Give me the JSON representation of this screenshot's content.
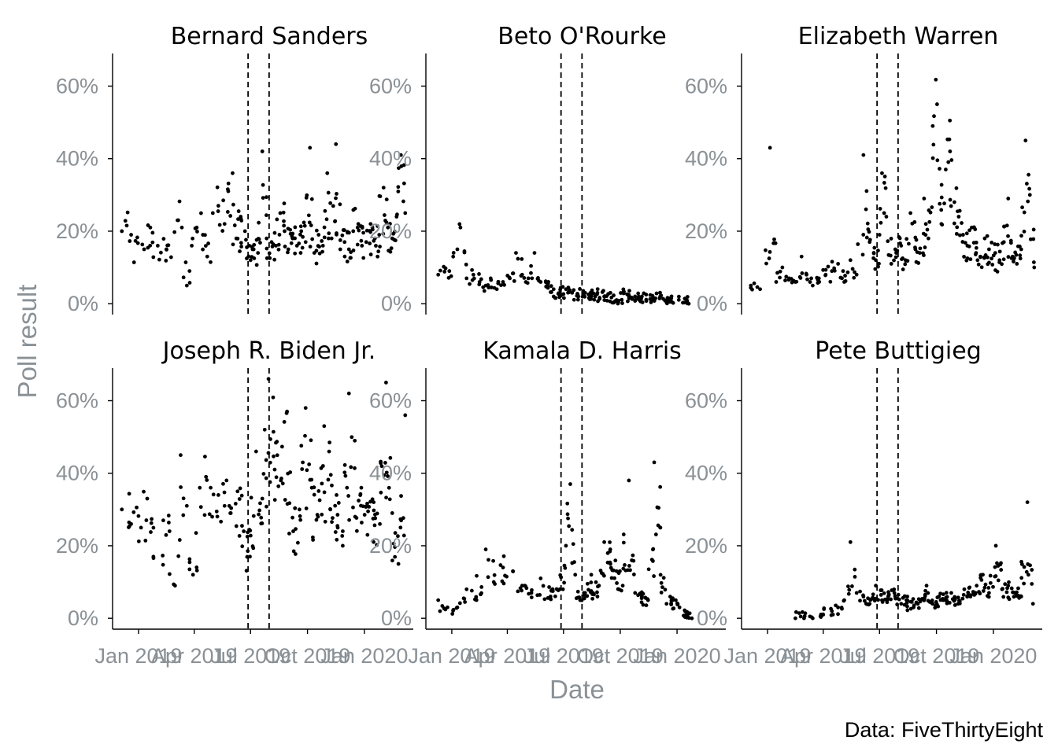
{
  "chart_data": {
    "type": "scatter",
    "facets": [
      {
        "name": "Bernard Sanders",
        "points": [
          [
            "2018-12-05",
            20
          ],
          [
            "2018-12-20",
            19
          ],
          [
            "2019-01-10",
            15
          ],
          [
            "2019-01-20",
            21
          ],
          [
            "2019-02-01",
            16
          ],
          [
            "2019-02-15",
            15
          ],
          [
            "2019-03-05",
            23
          ],
          [
            "2019-03-12",
            21
          ],
          [
            "2019-03-20",
            5
          ],
          [
            "2019-03-28",
            16
          ],
          [
            "2019-04-05",
            21
          ],
          [
            "2019-04-15",
            19
          ],
          [
            "2019-04-22",
            13
          ],
          [
            "2019-05-01",
            25
          ],
          [
            "2019-05-10",
            27
          ],
          [
            "2019-05-20",
            22
          ],
          [
            "2019-05-26",
            31
          ],
          [
            "2019-06-02",
            36
          ],
          [
            "2019-06-08",
            18
          ],
          [
            "2019-06-15",
            24
          ],
          [
            "2019-06-22",
            20
          ],
          [
            "2019-06-29",
            16
          ],
          [
            "2019-07-06",
            15
          ],
          [
            "2019-07-13",
            14
          ],
          [
            "2019-07-20",
            42
          ],
          [
            "2019-07-27",
            18
          ],
          [
            "2019-08-04",
            17
          ],
          [
            "2019-08-11",
            16
          ],
          [
            "2019-08-18",
            25
          ],
          [
            "2019-08-25",
            20
          ],
          [
            "2019-08-31",
            15
          ],
          [
            "2019-09-07",
            18
          ],
          [
            "2019-09-14",
            16
          ],
          [
            "2019-09-21",
            20
          ],
          [
            "2019-09-28",
            17
          ],
          [
            "2019-10-05",
            43
          ],
          [
            "2019-10-12",
            14
          ],
          [
            "2019-10-19",
            19
          ],
          [
            "2019-10-26",
            16
          ],
          [
            "2019-11-02",
            36
          ],
          [
            "2019-11-09",
            18
          ],
          [
            "2019-11-16",
            44
          ],
          [
            "2019-11-23",
            15
          ],
          [
            "2019-11-30",
            17
          ],
          [
            "2019-12-07",
            15
          ],
          [
            "2019-12-14",
            20
          ],
          [
            "2019-12-21",
            21
          ],
          [
            "2019-12-28",
            16
          ],
          [
            "2020-01-04",
            17
          ],
          [
            "2020-01-11",
            22
          ],
          [
            "2020-01-18",
            18
          ],
          [
            "2020-01-25",
            19
          ],
          [
            "2020-02-01",
            32
          ],
          [
            "2020-02-08",
            21
          ],
          [
            "2020-02-15",
            18
          ],
          [
            "2020-02-22",
            24
          ],
          [
            "2020-02-29",
            41
          ],
          [
            "2020-03-07",
            25
          ]
        ]
      },
      {
        "name": "Beto O'Rourke",
        "points": [
          [
            "2018-12-10",
            8
          ],
          [
            "2018-12-28",
            9
          ],
          [
            "2019-01-10",
            15
          ],
          [
            "2019-01-15",
            21
          ],
          [
            "2019-01-25",
            7
          ],
          [
            "2019-02-05",
            8
          ],
          [
            "2019-02-15",
            6
          ],
          [
            "2019-02-25",
            5
          ],
          [
            "2019-03-05",
            7
          ],
          [
            "2019-03-15",
            4
          ],
          [
            "2019-03-25",
            6
          ],
          [
            "2019-04-05",
            7
          ],
          [
            "2019-04-15",
            14
          ],
          [
            "2019-04-25",
            8
          ],
          [
            "2019-05-05",
            7
          ],
          [
            "2019-05-15",
            14
          ],
          [
            "2019-05-25",
            6
          ],
          [
            "2019-06-05",
            5
          ],
          [
            "2019-06-15",
            4
          ],
          [
            "2019-06-25",
            3
          ],
          [
            "2019-07-05",
            4
          ],
          [
            "2019-07-15",
            3
          ],
          [
            "2019-07-25",
            2
          ],
          [
            "2019-08-05",
            3
          ],
          [
            "2019-08-15",
            2
          ],
          [
            "2019-08-25",
            3
          ],
          [
            "2019-09-05",
            2
          ],
          [
            "2019-09-15",
            3
          ],
          [
            "2019-09-25",
            1
          ],
          [
            "2019-10-05",
            3
          ],
          [
            "2019-10-15",
            2
          ],
          [
            "2019-10-25",
            2
          ],
          [
            "2019-11-01",
            1
          ],
          [
            "2019-11-05",
            2
          ],
          [
            "2019-12-15",
            1
          ],
          [
            "2020-01-20",
            0
          ]
        ]
      },
      {
        "name": "Elizabeth Warren",
        "points": [
          [
            "2018-12-05",
            5
          ],
          [
            "2018-12-20",
            4
          ],
          [
            "2019-01-05",
            43
          ],
          [
            "2019-01-15",
            6
          ],
          [
            "2019-01-25",
            10
          ],
          [
            "2019-02-05",
            7
          ],
          [
            "2019-02-15",
            6
          ],
          [
            "2019-02-25",
            13
          ],
          [
            "2019-03-05",
            8
          ],
          [
            "2019-03-15",
            5
          ],
          [
            "2019-03-25",
            7
          ],
          [
            "2019-04-05",
            8
          ],
          [
            "2019-04-15",
            9
          ],
          [
            "2019-04-25",
            11
          ],
          [
            "2019-05-05",
            6
          ],
          [
            "2019-05-15",
            12
          ],
          [
            "2019-05-25",
            8
          ],
          [
            "2019-06-05",
            41
          ],
          [
            "2019-06-15",
            17
          ],
          [
            "2019-06-25",
            12
          ],
          [
            "2019-07-01",
            19
          ],
          [
            "2019-07-05",
            36
          ],
          [
            "2019-07-12",
            24
          ],
          [
            "2019-07-20",
            11
          ],
          [
            "2019-07-28",
            14
          ],
          [
            "2019-08-05",
            16
          ],
          [
            "2019-08-12",
            12
          ],
          [
            "2019-08-20",
            25
          ],
          [
            "2019-08-28",
            15
          ],
          [
            "2019-09-04",
            14
          ],
          [
            "2019-09-11",
            29
          ],
          [
            "2019-09-18",
            18
          ],
          [
            "2019-09-25",
            49
          ],
          [
            "2019-10-02",
            55
          ],
          [
            "2019-10-09",
            22
          ],
          [
            "2019-10-16",
            37
          ],
          [
            "2019-10-23",
            42
          ],
          [
            "2019-10-30",
            28
          ],
          [
            "2019-11-06",
            24
          ],
          [
            "2019-11-13",
            19
          ],
          [
            "2019-11-20",
            16
          ],
          [
            "2019-11-27",
            21
          ],
          [
            "2019-12-04",
            14
          ],
          [
            "2019-12-11",
            13
          ],
          [
            "2019-12-18",
            18
          ],
          [
            "2019-12-25",
            15
          ],
          [
            "2020-01-04",
            14
          ],
          [
            "2020-01-11",
            12
          ],
          [
            "2020-01-18",
            17
          ],
          [
            "2020-01-25",
            29
          ],
          [
            "2020-02-01",
            13
          ],
          [
            "2020-02-08",
            11
          ],
          [
            "2020-02-15",
            15
          ],
          [
            "2020-02-22",
            45
          ],
          [
            "2020-02-29",
            30
          ],
          [
            "2020-03-07",
            10
          ]
        ]
      },
      {
        "name": "Joseph R. Biden Jr.",
        "points": [
          [
            "2018-12-05",
            30
          ],
          [
            "2018-12-20",
            26
          ],
          [
            "2019-01-05",
            25
          ],
          [
            "2019-01-15",
            33
          ],
          [
            "2019-01-25",
            17
          ],
          [
            "2019-02-10",
            27
          ],
          [
            "2019-02-20",
            24
          ],
          [
            "2019-03-01",
            9
          ],
          [
            "2019-03-10",
            45
          ],
          [
            "2019-03-20",
            31
          ],
          [
            "2019-03-30",
            12
          ],
          [
            "2019-04-10",
            36
          ],
          [
            "2019-04-20",
            39
          ],
          [
            "2019-04-30",
            28
          ],
          [
            "2019-05-10",
            34
          ],
          [
            "2019-05-20",
            31
          ],
          [
            "2019-05-30",
            29
          ],
          [
            "2019-06-10",
            35
          ],
          [
            "2019-06-20",
            24
          ],
          [
            "2019-06-30",
            17
          ],
          [
            "2019-07-10",
            46
          ],
          [
            "2019-07-20",
            33
          ],
          [
            "2019-07-30",
            66
          ],
          [
            "2019-08-09",
            41
          ],
          [
            "2019-08-19",
            38
          ],
          [
            "2019-08-29",
            57
          ],
          [
            "2019-09-08",
            24
          ],
          [
            "2019-09-18",
            30
          ],
          [
            "2019-09-28",
            58
          ],
          [
            "2019-10-08",
            36
          ],
          [
            "2019-10-18",
            28
          ],
          [
            "2019-10-28",
            53
          ],
          [
            "2019-11-07",
            30
          ],
          [
            "2019-11-17",
            34
          ],
          [
            "2019-11-27",
            20
          ],
          [
            "2019-12-07",
            62
          ],
          [
            "2019-12-17",
            28
          ],
          [
            "2019-12-27",
            36
          ],
          [
            "2020-01-06",
            23
          ],
          [
            "2020-01-16",
            32
          ],
          [
            "2020-01-26",
            26
          ],
          [
            "2020-02-05",
            65
          ],
          [
            "2020-02-15",
            29
          ],
          [
            "2020-02-25",
            15
          ],
          [
            "2020-03-07",
            56
          ]
        ]
      },
      {
        "name": "Kamala D. Harris",
        "points": [
          [
            "2018-12-10",
            5
          ],
          [
            "2018-12-25",
            3
          ],
          [
            "2019-01-10",
            3
          ],
          [
            "2019-01-25",
            8
          ],
          [
            "2019-02-10",
            5
          ],
          [
            "2019-02-25",
            19
          ],
          [
            "2019-03-10",
            10
          ],
          [
            "2019-03-25",
            14
          ],
          [
            "2019-04-10",
            13
          ],
          [
            "2019-04-25",
            9
          ],
          [
            "2019-05-10",
            7
          ],
          [
            "2019-05-25",
            11
          ],
          [
            "2019-06-10",
            6
          ],
          [
            "2019-06-25",
            8
          ],
          [
            "2019-07-05",
            20
          ],
          [
            "2019-07-12",
            37
          ],
          [
            "2019-07-20",
            12
          ],
          [
            "2019-07-28",
            5
          ],
          [
            "2019-08-05",
            7
          ],
          [
            "2019-08-15",
            12
          ],
          [
            "2019-08-25",
            6
          ],
          [
            "2019-09-05",
            21
          ],
          [
            "2019-09-15",
            15
          ],
          [
            "2019-09-25",
            13
          ],
          [
            "2019-10-05",
            9
          ],
          [
            "2019-10-15",
            38
          ],
          [
            "2019-10-25",
            7
          ],
          [
            "2019-11-05",
            6
          ],
          [
            "2019-11-15",
            5
          ],
          [
            "2019-11-25",
            43
          ],
          [
            "2019-12-05",
            25
          ],
          [
            "2019-12-15",
            4
          ],
          [
            "2019-12-25",
            5
          ],
          [
            "2020-01-05",
            3
          ],
          [
            "2020-01-25",
            0
          ]
        ]
      },
      {
        "name": "Pete Buttigieg",
        "points": [
          [
            "2019-02-15",
            0
          ],
          [
            "2019-03-01",
            0
          ],
          [
            "2019-03-15",
            0
          ],
          [
            "2019-04-01",
            1
          ],
          [
            "2019-04-15",
            2
          ],
          [
            "2019-04-25",
            3
          ],
          [
            "2019-05-05",
            5
          ],
          [
            "2019-05-15",
            21
          ],
          [
            "2019-05-25",
            7
          ],
          [
            "2019-06-05",
            6
          ],
          [
            "2019-06-15",
            4
          ],
          [
            "2019-06-25",
            9
          ],
          [
            "2019-07-05",
            5
          ],
          [
            "2019-07-15",
            6
          ],
          [
            "2019-07-25",
            7
          ],
          [
            "2019-08-05",
            4
          ],
          [
            "2019-08-15",
            6
          ],
          [
            "2019-08-25",
            3
          ],
          [
            "2019-09-05",
            5
          ],
          [
            "2019-09-15",
            9
          ],
          [
            "2019-09-25",
            4
          ],
          [
            "2019-10-05",
            6
          ],
          [
            "2019-10-15",
            5
          ],
          [
            "2019-10-25",
            7
          ],
          [
            "2019-11-05",
            4
          ],
          [
            "2019-11-15",
            8
          ],
          [
            "2019-11-25",
            6
          ],
          [
            "2019-12-05",
            9
          ],
          [
            "2019-12-15",
            12
          ],
          [
            "2019-12-25",
            7
          ],
          [
            "2020-01-05",
            20
          ],
          [
            "2020-01-15",
            8
          ],
          [
            "2020-01-25",
            9
          ],
          [
            "2020-02-05",
            7
          ],
          [
            "2020-02-15",
            6
          ],
          [
            "2020-02-25",
            32
          ],
          [
            "2020-03-05",
            4
          ]
        ]
      }
    ],
    "debate_lines": [
      "2019-06-27",
      "2019-07-31"
    ],
    "x_ticks": [
      "Jan 2019",
      "Apr 2019",
      "Jul 2019",
      "Oct 2019",
      "Jan 2020"
    ],
    "x_range": [
      "2018-11-20",
      "2020-03-20"
    ],
    "y_ticks": [
      0,
      20,
      40,
      60
    ],
    "y_tick_labels": [
      "0%",
      "20%",
      "40%",
      "60%"
    ],
    "y_range": [
      -3,
      69
    ],
    "xlabel": "Date",
    "ylabel": "Poll result",
    "caption": "Data: FiveThirtyEight",
    "grid": false,
    "point_color": "#000000",
    "axis_text_color": "#8a9196"
  }
}
